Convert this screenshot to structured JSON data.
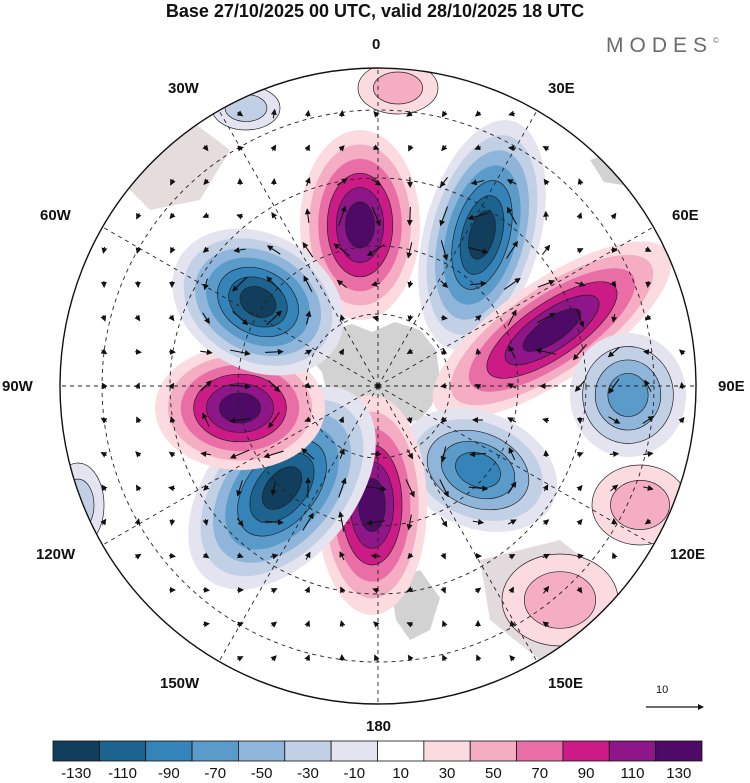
{
  "title": "Base 27/10/2025 00 UTC, valid 28/10/2025 18 UTC",
  "brand": {
    "name": "MODES",
    "mark": "©"
  },
  "longitude_labels": {
    "lon_0": "0",
    "lon_30e": "30E",
    "lon_60e": "60E",
    "lon_90e": "90E",
    "lon_120e": "120E",
    "lon_150e": "150E",
    "lon_180": "180",
    "lon_150w": "150W",
    "lon_120w": "120W",
    "lon_90w": "90W",
    "lon_60w": "60W",
    "lon_30w": "30W"
  },
  "reference_vector": {
    "value": "10"
  },
  "colorbar": {
    "labels": [
      "-130",
      "-110",
      "-90",
      "-70",
      "-50",
      "-30",
      "-10",
      "10",
      "30",
      "50",
      "70",
      "90",
      "110",
      "130"
    ],
    "colors": [
      "#113e5c",
      "#1c6390",
      "#3484ba",
      "#5b9bc9",
      "#8fb6da",
      "#c2d0e6",
      "#e4e4f1",
      "#ffffff",
      "#fcdbe0",
      "#f5adc4",
      "#ea6ea6",
      "#cc1b87",
      "#8e1689",
      "#4e0a66"
    ]
  },
  "map_colors": {
    "land": "#d2d2d2",
    "pos": [
      "#fcdbe0",
      "#f5adc4",
      "#ea6ea6",
      "#cc1b87",
      "#8e1689",
      "#4e0a66"
    ],
    "neg": [
      "#e4e4f1",
      "#c2d0e6",
      "#8fb6da",
      "#5b9bc9",
      "#3484ba",
      "#1c6390",
      "#113e5c"
    ]
  }
}
